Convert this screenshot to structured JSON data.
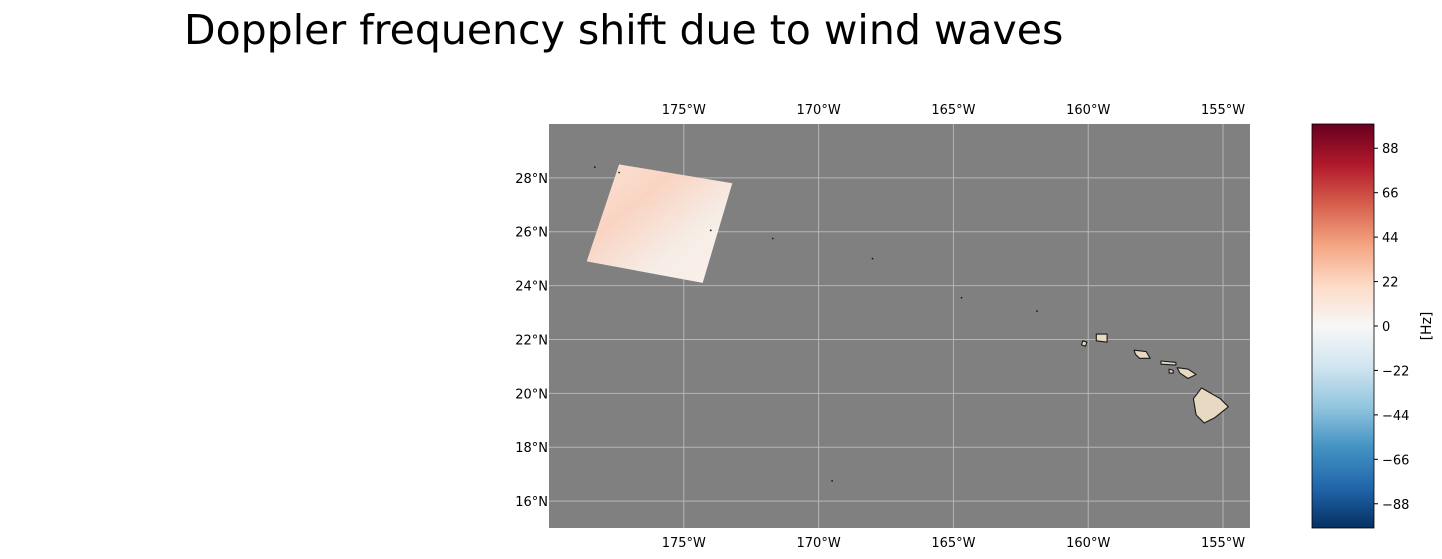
{
  "title": "Doppler frequency shift due to wind waves",
  "map": {
    "lon_range": [
      -180,
      -154
    ],
    "lat_range": [
      15,
      30
    ],
    "lon_ticks": [
      {
        "value": -175,
        "label": "175°W"
      },
      {
        "value": -170,
        "label": "170°W"
      },
      {
        "value": -165,
        "label": "165°W"
      },
      {
        "value": -160,
        "label": "160°W"
      },
      {
        "value": -155,
        "label": "155°W"
      }
    ],
    "lat_ticks": [
      {
        "value": 28,
        "label": "28°N"
      },
      {
        "value": 26,
        "label": "26°N"
      },
      {
        "value": 24,
        "label": "24°N"
      },
      {
        "value": 22,
        "label": "22°N"
      },
      {
        "value": 20,
        "label": "20°N"
      },
      {
        "value": 18,
        "label": "18°N"
      },
      {
        "value": 16,
        "label": "16°N"
      }
    ],
    "grid": true,
    "ocean_color": "#808080",
    "grid_color": "#b5b5b5",
    "land_color": "#e8d9c2",
    "coast_color": "#1a1a1a",
    "swath": {
      "corners_lonlat": [
        [
          -177.4,
          28.5
        ],
        [
          -173.2,
          27.8
        ],
        [
          -174.3,
          24.1
        ],
        [
          -178.6,
          24.9
        ]
      ],
      "value_range_hz": [
        5,
        20
      ],
      "colors": [
        "#fbe3d7",
        "#f9d4c2",
        "#f6ede7",
        "#fcf1ea"
      ]
    },
    "islands": [
      {
        "name": "Hawaii",
        "points": [
          [
            -155.8,
            20.2
          ],
          [
            -155.1,
            19.8
          ],
          [
            -154.8,
            19.5
          ],
          [
            -155.3,
            19.1
          ],
          [
            -155.7,
            18.9
          ],
          [
            -156.0,
            19.2
          ],
          [
            -156.1,
            19.8
          ]
        ]
      },
      {
        "name": "Maui",
        "points": [
          [
            -156.7,
            20.95
          ],
          [
            -156.3,
            20.9
          ],
          [
            -156.0,
            20.7
          ],
          [
            -156.3,
            20.55
          ],
          [
            -156.6,
            20.75
          ]
        ]
      },
      {
        "name": "Molokai",
        "points": [
          [
            -157.3,
            21.2
          ],
          [
            -156.75,
            21.15
          ],
          [
            -156.75,
            21.05
          ],
          [
            -157.3,
            21.08
          ]
        ]
      },
      {
        "name": "Lanai",
        "points": [
          [
            -157.0,
            20.9
          ],
          [
            -156.85,
            20.85
          ],
          [
            -156.85,
            20.75
          ],
          [
            -157.0,
            20.75
          ]
        ]
      },
      {
        "name": "Oahu",
        "points": [
          [
            -158.3,
            21.6
          ],
          [
            -157.85,
            21.55
          ],
          [
            -157.7,
            21.3
          ],
          [
            -158.1,
            21.3
          ],
          [
            -158.25,
            21.45
          ]
        ]
      },
      {
        "name": "Kauai",
        "points": [
          [
            -159.7,
            22.2
          ],
          [
            -159.3,
            22.2
          ],
          [
            -159.3,
            21.9
          ],
          [
            -159.7,
            21.95
          ]
        ]
      },
      {
        "name": "Niihau",
        "points": [
          [
            -160.2,
            21.95
          ],
          [
            -160.05,
            21.9
          ],
          [
            -160.1,
            21.75
          ],
          [
            -160.25,
            21.8
          ]
        ]
      }
    ],
    "islets": [
      [
        -178.3,
        28.4
      ],
      [
        -177.4,
        28.2
      ],
      [
        -174.0,
        26.05
      ],
      [
        -171.7,
        25.75
      ],
      [
        -168.0,
        25.0
      ],
      [
        -164.7,
        23.55
      ],
      [
        -161.9,
        23.05
      ],
      [
        -169.5,
        16.75
      ]
    ]
  },
  "colorbar": {
    "label": "[Hz]",
    "range": [
      -100,
      100
    ],
    "ticks": [
      {
        "value": 88,
        "label": "88"
      },
      {
        "value": 66,
        "label": "66"
      },
      {
        "value": 44,
        "label": "44"
      },
      {
        "value": 22,
        "label": "22"
      },
      {
        "value": 0,
        "label": "0"
      },
      {
        "value": -22,
        "label": "−22"
      },
      {
        "value": -44,
        "label": "−44"
      },
      {
        "value": -66,
        "label": "−66"
      },
      {
        "value": -88,
        "label": "−88"
      }
    ],
    "colormap": "RdBu_r",
    "color_stops": [
      "#053061",
      "#2166ac",
      "#4393c3",
      "#92c5de",
      "#d1e5f0",
      "#f7f7f7",
      "#fddbc7",
      "#f4a582",
      "#d6604d",
      "#b2182b",
      "#67001f"
    ]
  }
}
